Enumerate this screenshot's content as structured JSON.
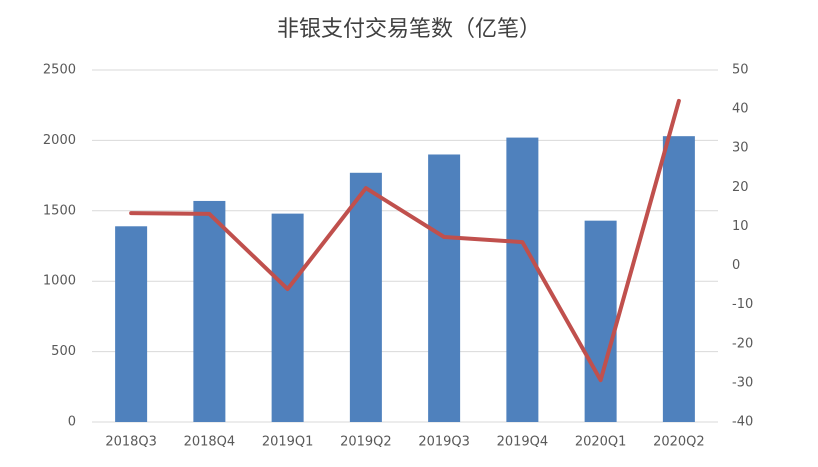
{
  "chart_data": {
    "type": "bar",
    "title": "非银支付交易笔数（亿笔）",
    "categories": [
      "2018Q3",
      "2018Q4",
      "2019Q1",
      "2019Q2",
      "2019Q3",
      "2019Q4",
      "2020Q1",
      "2020Q2"
    ],
    "series": [
      {
        "type": "bar",
        "color": "#4f81bd",
        "values": [
          1390,
          1570,
          1480,
          1770,
          1900,
          2020,
          1430,
          2030
        ]
      },
      {
        "type": "line",
        "axis": "y2",
        "color": "#c0504d",
        "values": [
          13.4,
          13.2,
          -6.0,
          19.8,
          7.3,
          6.0,
          -29.3,
          42.1
        ]
      }
    ],
    "ylim": [
      0,
      2500
    ],
    "yticks": [
      0,
      500,
      1000,
      1500,
      2000,
      2500
    ],
    "y2lim": [
      -40,
      50
    ],
    "y2ticks": [
      -40,
      -30,
      -20,
      -10,
      0,
      10,
      20,
      30,
      40,
      50
    ],
    "grid": true
  }
}
